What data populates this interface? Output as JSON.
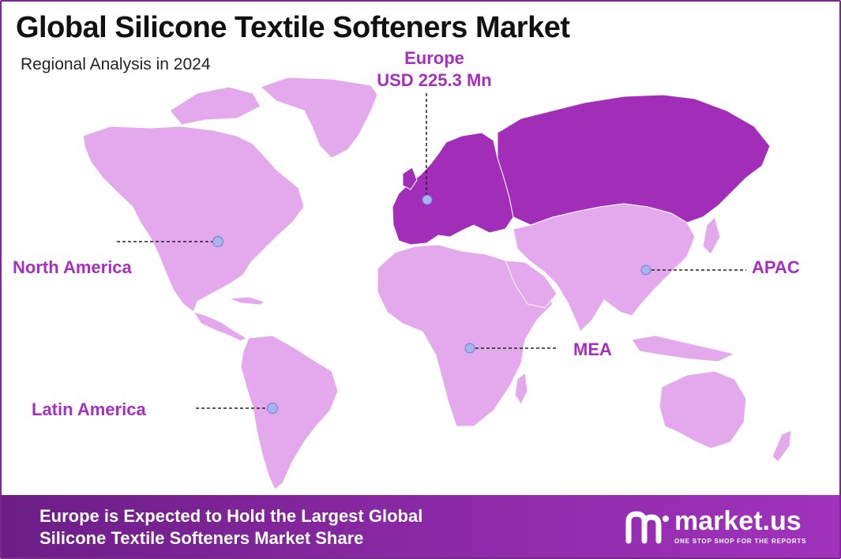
{
  "title": "Global Silicone Textile Softeners Market",
  "subtitle": "Regional Analysis in 2024",
  "colors": {
    "land": "#e3a9ec",
    "highlight": "#a22db9",
    "label": "#a52fbf",
    "marker": "#a6b5ee",
    "footer": "#7a2592"
  },
  "regions": {
    "europe": {
      "name": "Europe",
      "value": "USD 225.3 Mn"
    },
    "north_america": {
      "name": "North America"
    },
    "latin_america": {
      "name": "Latin America"
    },
    "mea": {
      "name": "MEA"
    },
    "apac": {
      "name": "APAC"
    }
  },
  "footer": {
    "line1": "Europe is Expected to Hold the Largest Global",
    "line2": "Silicone Textile  Softeners Market Share"
  },
  "brand": {
    "name": "market.us",
    "tagline": "ONE STOP SHOP FOR THE REPORTS",
    "logo_icon": "market-us-logo-icon"
  }
}
